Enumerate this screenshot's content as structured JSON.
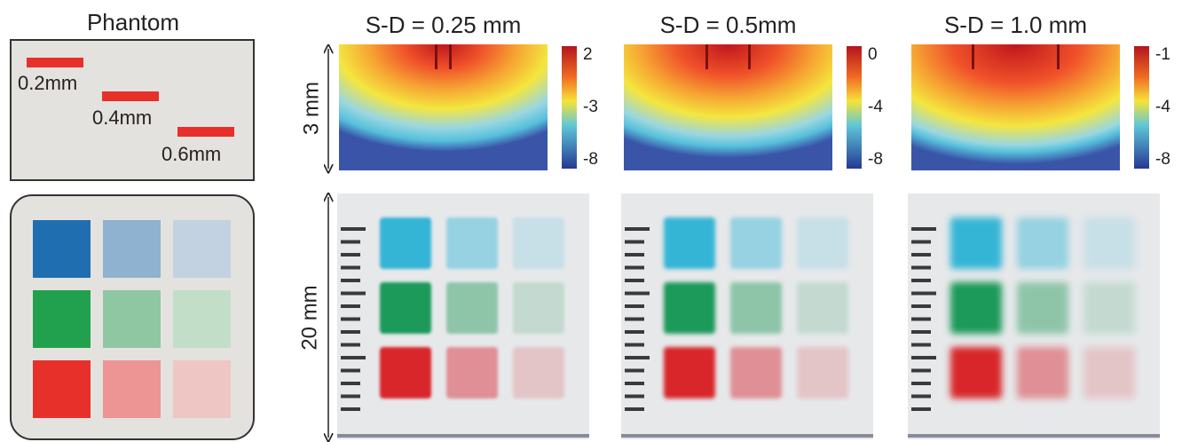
{
  "phantom": {
    "title": "Phantom",
    "bars": [
      "0.2mm",
      "0.4mm",
      "0.6mm"
    ]
  },
  "scale_labels": {
    "depth": "3 mm",
    "width": "20 mm"
  },
  "panels": [
    {
      "title": "S-D = 0.25 mm",
      "colorbar_ticks": [
        "2",
        "-3",
        "-8"
      ]
    },
    {
      "title": "S-D = 0.5mm",
      "colorbar_ticks": [
        "0",
        "-4",
        "-8"
      ]
    },
    {
      "title": "S-D = 1.0 mm",
      "colorbar_ticks": [
        "-1",
        "-4",
        "-8"
      ]
    }
  ]
}
